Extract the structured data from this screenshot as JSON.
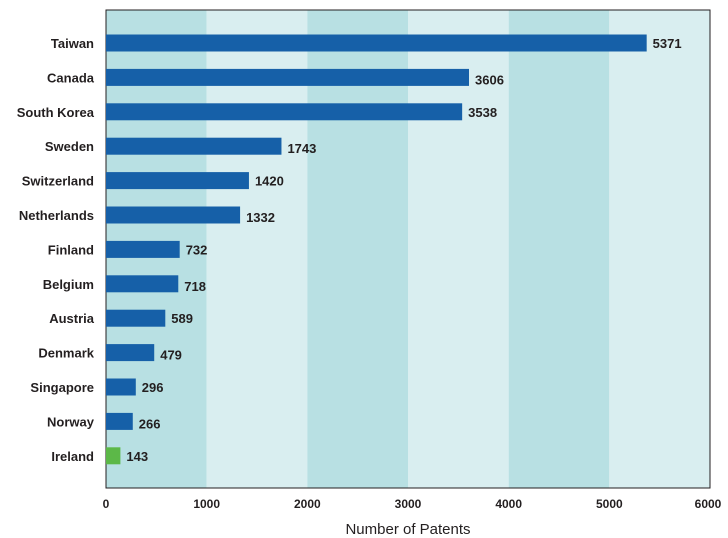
{
  "chart_data": {
    "type": "bar",
    "orientation": "horizontal",
    "categories": [
      "Taiwan",
      "Canada",
      "South Korea",
      "Sweden",
      "Switzerland",
      "Netherlands",
      "Finland",
      "Belgium",
      "Austria",
      "Denmark",
      "Singapore",
      "Norway",
      "Ireland"
    ],
    "values": [
      5371,
      3606,
      3538,
      1743,
      1420,
      1332,
      732,
      718,
      589,
      479,
      296,
      266,
      143
    ],
    "value_labels": [
      "5371",
      "3606",
      "3538",
      "1743",
      "1420",
      "1332",
      "732",
      "718",
      "589",
      "479",
      "296",
      "266",
      "143"
    ],
    "xlabel": "Number of Patents",
    "ylabel": "",
    "xlim": [
      0,
      6000
    ],
    "xticks": [
      "0",
      "1000",
      "2000",
      "3000",
      "4000",
      "5000",
      "6000"
    ],
    "grid": "alternating vertical bands",
    "legend": "none",
    "colors": {
      "bar": "#1660a8",
      "highlight_bar": "#5cb848",
      "band_dark": "#b8e0e3",
      "band_light": "#d9eef0",
      "text": "#231f20"
    },
    "highlight_category": "Ireland"
  }
}
